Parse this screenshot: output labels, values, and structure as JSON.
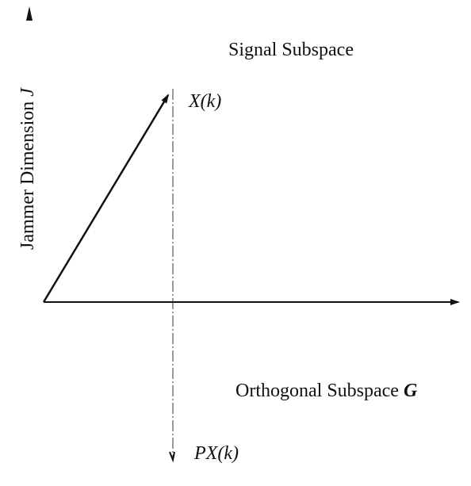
{
  "labels": {
    "y_axis": "Jammer Dimension",
    "y_axis_symbol": "J",
    "signal": "Signal Subspace",
    "vector": "X(k)",
    "orthogonal": "Orthogonal Subspace",
    "orthogonal_symbol": "G",
    "projection": "PX(k)"
  }
}
